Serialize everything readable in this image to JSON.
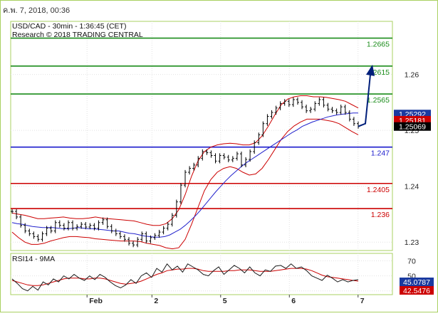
{
  "timestamp": "ค.พ. 7, 2018, 00:36",
  "colors": {
    "background": "#ffffff",
    "frame": "#a8d060",
    "grid": "#e2e2e2",
    "price": "#000000",
    "ma": "#2222cc",
    "bollinger": "#cc0000",
    "arrow": "#001f7a",
    "resistance": "#1a8c1a",
    "pivot": "#1a1acc",
    "support": "#cc0000",
    "rsi": "#1a1a1a",
    "rsi_ma": "#cc0000",
    "current_box": "#1a3aa0",
    "bid_box": "#000000",
    "ask_box": "#cc0000",
    "rsi_box_1": "#1a3aa0",
    "rsi_box_2": "#cc0000"
  },
  "chart_data": [
    {
      "type": "candlestick",
      "title": "USD/CAD - 30min - 1:36:45 (CET)",
      "subtitle": "Research © 2018 TRADING CENTRAL",
      "x_tick_labels": [
        "Feb",
        "2",
        "5",
        "6",
        "7"
      ],
      "x_tick_positions": [
        0.2,
        0.37,
        0.55,
        0.73,
        0.91
      ],
      "y_ticks": [
        1.23,
        1.24,
        1.25,
        1.26
      ],
      "ylim": [
        1.2285,
        1.2695
      ],
      "grid": true,
      "levels": [
        {
          "label": "1.2665",
          "value": 1.2665,
          "kind": "resistance"
        },
        {
          "label": ".2615",
          "value": 1.2615,
          "kind": "resistance"
        },
        {
          "label": "1.2565",
          "value": 1.2565,
          "kind": "resistance"
        },
        {
          "label": "1.247",
          "value": 1.247,
          "kind": "pivot"
        },
        {
          "label": "1.2405",
          "value": 1.2405,
          "kind": "support"
        },
        {
          "label": "1.236",
          "value": 1.236,
          "kind": "support"
        }
      ],
      "price_labels": [
        {
          "label": "1.25292",
          "value": 1.25292,
          "style": "current"
        },
        {
          "label": "1.25181",
          "value": 1.25181,
          "style": "ask"
        },
        {
          "label": "1.25069",
          "value": 1.25069,
          "style": "bid"
        }
      ],
      "close": [
        1.2355,
        1.2345,
        1.233,
        1.232,
        1.2315,
        1.231,
        1.2305,
        1.2315,
        1.2325,
        1.232,
        1.2335,
        1.233,
        1.2325,
        1.2335,
        1.2325,
        1.2328,
        1.2332,
        1.2327,
        1.233,
        1.2325,
        1.2335,
        1.234,
        1.2328,
        1.232,
        1.2315,
        1.231,
        1.2305,
        1.2298,
        1.2295,
        1.2305,
        1.2315,
        1.2302,
        1.2308,
        1.2312,
        1.2318,
        1.2325,
        1.2332,
        1.2348,
        1.2372,
        1.2402,
        1.2425,
        1.2432,
        1.2438,
        1.245,
        1.2462,
        1.246,
        1.2455,
        1.2445,
        1.2455,
        1.2452,
        1.2447,
        1.245,
        1.2458,
        1.2438,
        1.2448,
        1.2462,
        1.2478,
        1.2492,
        1.2512,
        1.2525,
        1.2532,
        1.254,
        1.2548,
        1.2552,
        1.2546,
        1.2555,
        1.255,
        1.2542,
        1.2535,
        1.2538,
        1.2548,
        1.2555,
        1.2545,
        1.2538,
        1.2535,
        1.2532,
        1.2542,
        1.2532,
        1.252,
        1.2512,
        1.2507
      ],
      "ma": [
        1.2335,
        1.2333,
        1.2332,
        1.233,
        1.2328,
        1.2327,
        1.2326,
        1.2326,
        1.2326,
        1.2325,
        1.2324,
        1.2324,
        1.2325,
        1.2326,
        1.2325,
        1.2324,
        1.2324,
        1.2323,
        1.2322,
        1.2321,
        1.232,
        1.232,
        1.2318,
        1.2316,
        1.2315,
        1.2313,
        1.2311,
        1.231,
        1.2309,
        1.2309,
        1.231,
        1.2313,
        1.2318,
        1.2323,
        1.233,
        1.2338,
        1.2347,
        1.2357,
        1.2368,
        1.2379,
        1.239,
        1.24,
        1.241,
        1.2419,
        1.2427,
        1.2435,
        1.2442,
        1.2448,
        1.2454,
        1.246,
        1.2466,
        1.2472,
        1.2478,
        1.2484,
        1.249,
        1.2496,
        1.2501,
        1.2507,
        1.2511,
        1.2515,
        1.2518,
        1.2521,
        1.2524,
        1.2526,
        1.2528,
        1.2529,
        1.253,
        1.2531,
        1.2531
      ],
      "bb_upper": [
        1.2352,
        1.235,
        1.2348,
        1.2345,
        1.2342,
        1.2342,
        1.2343,
        1.2344,
        1.2345,
        1.2343,
        1.2342,
        1.2342,
        1.2343,
        1.2345,
        1.2343,
        1.2342,
        1.2341,
        1.234,
        1.2339,
        1.2338,
        1.2335,
        1.2332,
        1.233,
        1.233,
        1.2333,
        1.2342,
        1.2358,
        1.2385,
        1.2418,
        1.2445,
        1.2462,
        1.247,
        1.2474,
        1.2476,
        1.2477,
        1.2476,
        1.2474,
        1.2474,
        1.2478,
        1.249,
        1.2508,
        1.2528,
        1.2546,
        1.2556,
        1.256,
        1.2562,
        1.2562,
        1.256,
        1.256,
        1.2559,
        1.2557,
        1.2555,
        1.2552,
        1.2546,
        1.254
      ],
      "bb_lower": [
        1.2318,
        1.2308,
        1.23,
        1.2296,
        1.2296,
        1.2298,
        1.2302,
        1.2305,
        1.2308,
        1.231,
        1.231,
        1.2309,
        1.2308,
        1.2306,
        1.2305,
        1.2304,
        1.2303,
        1.2302,
        1.2302,
        1.2302,
        1.2301,
        1.2298,
        1.2296,
        1.2294,
        1.229,
        1.2288,
        1.229,
        1.2305,
        1.2332,
        1.2362,
        1.2392,
        1.2412,
        1.2425,
        1.2432,
        1.2435,
        1.2432,
        1.2425,
        1.242,
        1.2422,
        1.2432,
        1.2448,
        1.2466,
        1.2484,
        1.2498,
        1.2508,
        1.2515,
        1.252,
        1.252,
        1.252,
        1.2518,
        1.2516,
        1.2512,
        1.2505,
        1.2498,
        1.2492
      ],
      "projection_target": 1.2615,
      "rsi_panel": {
        "label": "RSI14 - 9MA",
        "ylim": [
          25,
          80
        ],
        "y_ticks": [
          30,
          50,
          70
        ],
        "values_label": [
          "45.0787",
          "42.5476"
        ],
        "rsi": [
          46,
          40,
          33,
          30,
          36,
          31,
          42,
          38,
          46,
          42,
          50,
          46,
          52,
          47,
          44,
          50,
          45,
          52,
          48,
          42,
          37,
          34,
          38,
          45,
          40,
          50,
          54,
          48,
          60,
          55,
          66,
          58,
          63,
          55,
          66,
          62,
          58,
          52,
          50,
          57,
          62,
          52,
          58,
          64,
          60,
          54,
          62,
          54,
          50,
          58,
          56,
          63,
          64,
          60,
          66,
          60,
          62,
          57,
          50,
          47,
          44,
          51,
          47,
          42,
          45,
          42,
          44,
          45
        ],
        "rsi_ma": [
          44,
          42,
          40,
          38,
          37,
          37,
          38,
          40,
          42,
          44,
          46,
          47,
          47,
          47,
          46,
          46,
          47,
          47,
          46,
          44,
          42,
          40,
          39,
          40,
          41,
          43,
          46,
          49,
          52,
          54,
          57,
          58,
          59,
          59,
          60,
          60,
          59,
          57,
          56,
          56,
          56,
          56,
          57,
          57,
          58,
          58,
          58,
          57,
          56,
          56,
          56,
          57,
          58,
          59,
          60,
          60,
          60,
          59,
          57,
          54,
          51,
          49,
          48,
          47,
          46,
          45,
          44,
          43
        ]
      }
    }
  ]
}
